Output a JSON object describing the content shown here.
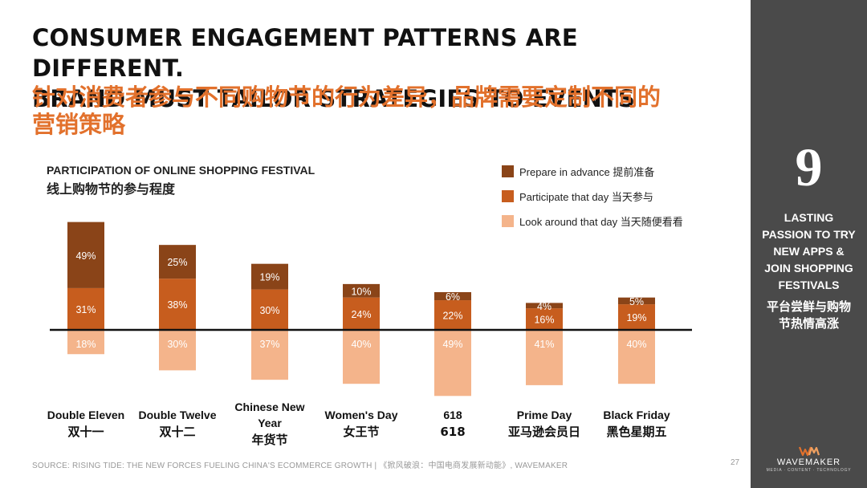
{
  "slide": {
    "title_en_line1": "CONSUMER ENGAGEMENT PATTERNS ARE DIFFERENT.",
    "title_en_line2": "BRAND MUST TAILOR STRATEGIES TO EVENTS",
    "title_zh_line1": "针对消费者参与不同购物节的行为差异，品牌需要定制不同的",
    "title_zh_line2": "营销策略",
    "source": "SOURCE: RISING TIDE: THE NEW FORCES FUELING CHINA'S ECOMMERCE GROWTH | 《掀风破浪：中国电商发展新动能》, WAVEMAKER",
    "page_number": "27"
  },
  "sidebar": {
    "number": "9",
    "en_lines": [
      "LASTING",
      "PASSION TO TRY",
      "NEW APPS &",
      "JOIN SHOPPING",
      "FESTIVALS"
    ],
    "zh_lines": [
      "平台尝鲜与购物",
      "节热情高涨"
    ],
    "logo_name": "WAVEMAKER",
    "logo_tag": "MEDIA · CONTENT · TECHNOLOGY",
    "logo_color": "#e2712c"
  },
  "chart_data": {
    "type": "bar",
    "stacked": true,
    "title": "PARTICIPATION OF ONLINE SHOPPING FESTIVAL",
    "subtitle": "线上购物节的参与程度",
    "baseline_note": "'Look around that day' is drawn below the baseline; the other two segments are stacked above it",
    "categories": [
      {
        "en": "Double Eleven",
        "zh": "双十一"
      },
      {
        "en": "Double Twelve",
        "zh": "双十二"
      },
      {
        "en": "Chinese New Year",
        "zh": "年货节"
      },
      {
        "en": "Women's Day",
        "zh": "女王节"
      },
      {
        "en": "618",
        "zh": "618"
      },
      {
        "en": "Prime Day",
        "zh": "亚马逊会员日"
      },
      {
        "en": "Black Friday",
        "zh": "黑色星期五"
      }
    ],
    "series": [
      {
        "name": "Prepare in advance 提前准备",
        "color": "#8a4418",
        "values": [
          49,
          25,
          19,
          10,
          6,
          4,
          5
        ]
      },
      {
        "name": "Participate that day 当天参与",
        "color": "#c75d1e",
        "values": [
          31,
          38,
          30,
          24,
          22,
          16,
          19
        ]
      },
      {
        "name": "Look around that day 当天随便看看",
        "color": "#f4b48b",
        "values": [
          18,
          30,
          37,
          40,
          49,
          41,
          40
        ]
      }
    ],
    "value_suffix": "%"
  }
}
